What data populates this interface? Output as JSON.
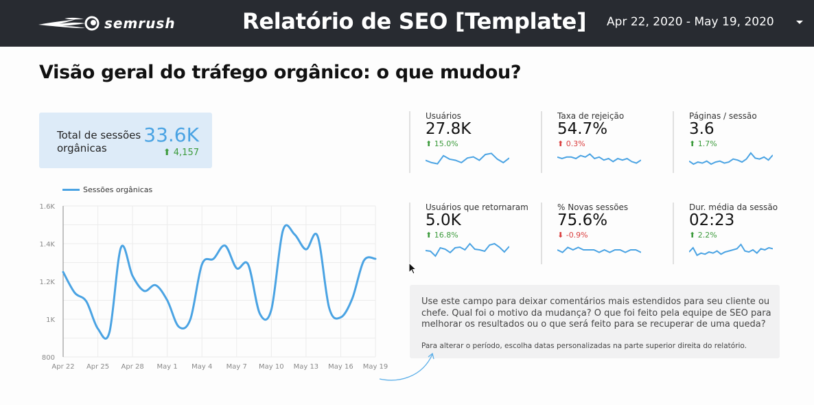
{
  "header": {
    "brand": "semrush",
    "title": "Relatório de SEO [Template]",
    "date_range": "Apr 22, 2020 - May 19, 2020",
    "date_dropdown_icon": "caret-down-icon"
  },
  "section_title": "Visão geral do tráfego orgânico: o que mudou?",
  "total_sessions": {
    "label": "Total de sessões orgânicas",
    "value": "33.6K",
    "delta": "4,157",
    "delta_direction": "up",
    "value_color": "#4aa3e3",
    "delta_color": "#3b9a3b"
  },
  "kpis": [
    {
      "label": "Usuários",
      "value": "27.8K",
      "delta": "15.0%",
      "direction": "up",
      "tone": "good",
      "spark": [
        40,
        38,
        37,
        44,
        41,
        40,
        38,
        42,
        43,
        40,
        45,
        46,
        41,
        38,
        42
      ]
    },
    {
      "label": "Taxa de rejeição",
      "value": "54.7%",
      "delta": "0.3%",
      "direction": "up",
      "tone": "bad",
      "spark": [
        40,
        39,
        40,
        40,
        39,
        41,
        40,
        42,
        39,
        40,
        38,
        39,
        37,
        39,
        38,
        39,
        37,
        36,
        38
      ]
    },
    {
      "label": "Páginas / sessão",
      "value": "3.6",
      "delta": "1.7%",
      "direction": "up",
      "tone": "good",
      "spark": [
        38,
        35,
        37,
        36,
        38,
        35,
        37,
        38,
        36,
        37,
        40,
        39,
        37,
        40,
        46,
        41,
        40,
        42,
        39,
        44
      ]
    },
    {
      "label": "Usuários que retornaram",
      "value": "5.0K",
      "delta": "16.8%",
      "direction": "up",
      "tone": "good",
      "spark": [
        40,
        39,
        32,
        44,
        42,
        37,
        44,
        45,
        41,
        50,
        42,
        41,
        39,
        48,
        50,
        45,
        38,
        46
      ]
    },
    {
      "label": "% Novas sessões",
      "value": "75.6%",
      "delta": "-0.9%",
      "direction": "down",
      "tone": "bad",
      "spark": [
        40,
        39,
        41,
        40,
        41,
        40,
        40,
        40,
        39,
        40,
        39,
        40,
        40,
        39,
        40,
        40,
        39
      ]
    },
    {
      "label": "Dur. média da sessão",
      "value": "02:23",
      "delta": "2.2%",
      "direction": "up",
      "tone": "good",
      "spark": [
        38,
        42,
        35,
        37,
        36,
        38,
        37,
        39,
        36,
        38,
        39,
        40,
        41,
        45,
        39,
        38,
        40,
        37,
        41,
        40,
        42,
        41
      ]
    }
  ],
  "chart_data": {
    "type": "line",
    "title": "",
    "legend": [
      "Sessões orgânicas"
    ],
    "legend_position": "top-left",
    "xlabel": "",
    "ylabel": "",
    "ylim": [
      800,
      1600
    ],
    "yticks": [
      "800",
      "1K",
      "1.2K",
      "1.4K",
      "1.6K"
    ],
    "xticks": [
      "Apr 22",
      "Apr 25",
      "Apr 28",
      "May 1",
      "May 4",
      "May 7",
      "May 10",
      "May 13",
      "May 16",
      "May 19"
    ],
    "grid": true,
    "series": [
      {
        "name": "Sessões orgânicas",
        "color": "#4aa3e3",
        "x": [
          "Apr 22",
          "Apr 23",
          "Apr 24",
          "Apr 25",
          "Apr 26",
          "Apr 27",
          "Apr 28",
          "Apr 29",
          "Apr 30",
          "May 1",
          "May 2",
          "May 3",
          "May 4",
          "May 5",
          "May 6",
          "May 7",
          "May 8",
          "May 9",
          "May 10",
          "May 11",
          "May 12",
          "May 13",
          "May 14",
          "May 15",
          "May 16",
          "May 17",
          "May 18",
          "May 19"
        ],
        "values": [
          1250,
          1140,
          1095,
          950,
          930,
          1380,
          1230,
          1150,
          1180,
          1100,
          960,
          1000,
          1290,
          1320,
          1390,
          1270,
          1290,
          1030,
          1050,
          1470,
          1450,
          1370,
          1440,
          1060,
          1010,
          1110,
          1310,
          1320
        ]
      }
    ]
  },
  "note": {
    "main": "Use este campo para deixar comentários mais estendidos para seu cliente ou chefe. Qual foi o motivo da mudança? O que foi feito pela equipe de SEO para melhorar os resultados ou o que será feito para se recuperar de uma queda?",
    "hint": "Para alterar o período, escolha datas personalizadas na parte superior direita do relatório."
  }
}
